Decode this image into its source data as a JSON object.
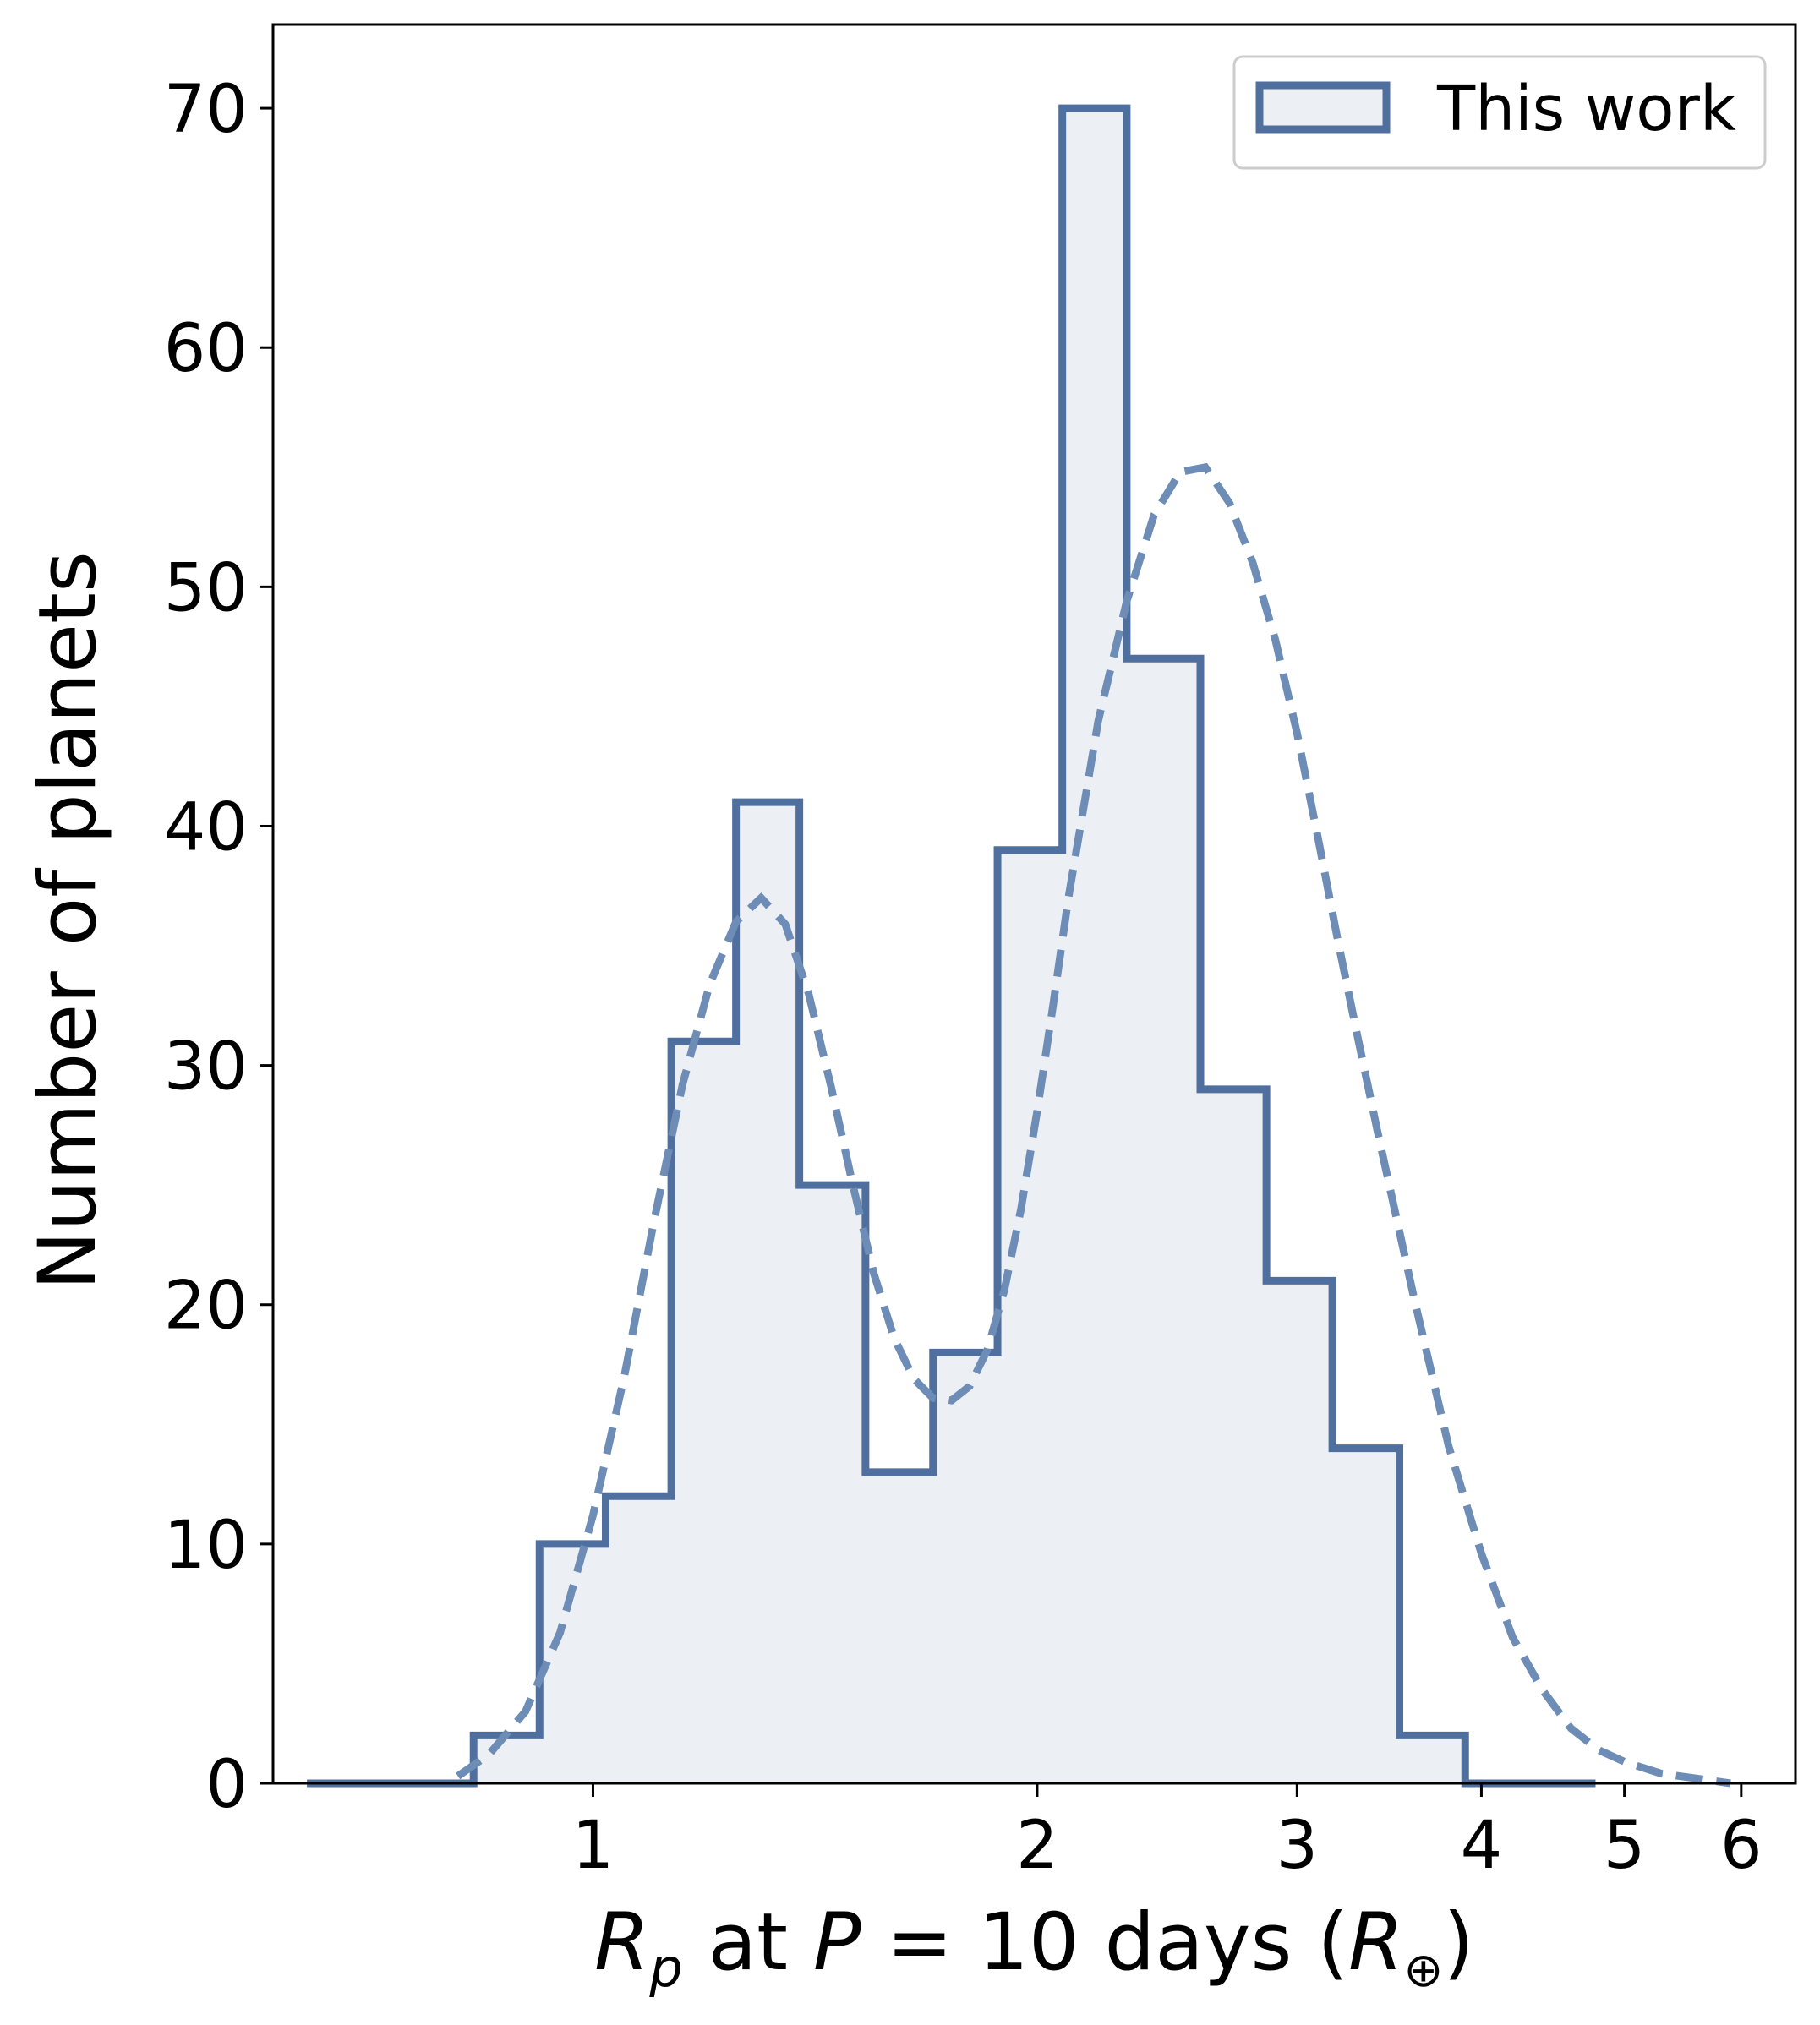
{
  "chart_data": {
    "type": "bar",
    "style": "step-histogram with dashed fit curve",
    "xscale": "log",
    "xlim": [
      0.607,
      6.53
    ],
    "ylim": [
      0,
      73.5
    ],
    "grid": false,
    "xticks": [
      1,
      2,
      3,
      4,
      5,
      6
    ],
    "xtick_labels": [
      "1",
      "2",
      "3",
      "4",
      "5",
      "6"
    ],
    "yticks": [
      0,
      10,
      20,
      30,
      40,
      50,
      60,
      70
    ],
    "ytick_labels": [
      "0",
      "10",
      "20",
      "30",
      "40",
      "50",
      "60",
      "70"
    ],
    "ylabel": "Number of planets",
    "xlabel": {
      "parts": [
        "R",
        "p",
        " at ",
        "P",
        " = 10 days (",
        "R",
        "⊕",
        ")"
      ]
    },
    "legend": {
      "position": "top-right",
      "entries": [
        "This work"
      ]
    },
    "colors": {
      "line": "#4f6f9f",
      "fill": "#eceff4",
      "curve": "#6d8cb6"
    },
    "histogram": {
      "name": "This work",
      "bin_edges": [
        0.64,
        0.83,
        0.92,
        1.02,
        1.13,
        1.25,
        1.38,
        1.53,
        1.7,
        1.88,
        2.08,
        2.3,
        2.58,
        2.86,
        3.17,
        3.52,
        3.9,
        4.32,
        4.78
      ],
      "counts": [
        0,
        2,
        10,
        12,
        31,
        41,
        25,
        13,
        18,
        39,
        70,
        47,
        29,
        21,
        14,
        2,
        0,
        0
      ]
    },
    "fit_curve": {
      "style": "dashed",
      "x": [
        0.81,
        0.85,
        0.9,
        0.95,
        1.0,
        1.05,
        1.1,
        1.15,
        1.2,
        1.25,
        1.3,
        1.35,
        1.4,
        1.45,
        1.5,
        1.55,
        1.6,
        1.65,
        1.7,
        1.75,
        1.8,
        1.85,
        1.9,
        1.95,
        2.0,
        2.05,
        2.1,
        2.2,
        2.3,
        2.4,
        2.5,
        2.6,
        2.7,
        2.8,
        2.9,
        3.0,
        3.1,
        3.2,
        3.3,
        3.4,
        3.6,
        3.8,
        4.0,
        4.2,
        4.4,
        4.6,
        4.8,
        5.0,
        5.3,
        5.6,
        5.9
      ],
      "y": [
        0.3,
        1.2,
        3.0,
        6.3,
        11.2,
        17.0,
        23.5,
        29.2,
        33.4,
        36.0,
        37.0,
        35.9,
        33.0,
        29.1,
        25.0,
        21.3,
        18.6,
        16.9,
        16.1,
        16.0,
        16.6,
        18.1,
        20.6,
        24.0,
        28.1,
        32.5,
        37.0,
        44.4,
        49.4,
        53.0,
        54.8,
        55.0,
        53.5,
        51.0,
        47.8,
        43.9,
        39.5,
        35.1,
        31.1,
        27.3,
        20.3,
        14.1,
        9.6,
        6.1,
        3.9,
        2.3,
        1.4,
        0.9,
        0.4,
        0.2,
        0.0
      ]
    }
  }
}
